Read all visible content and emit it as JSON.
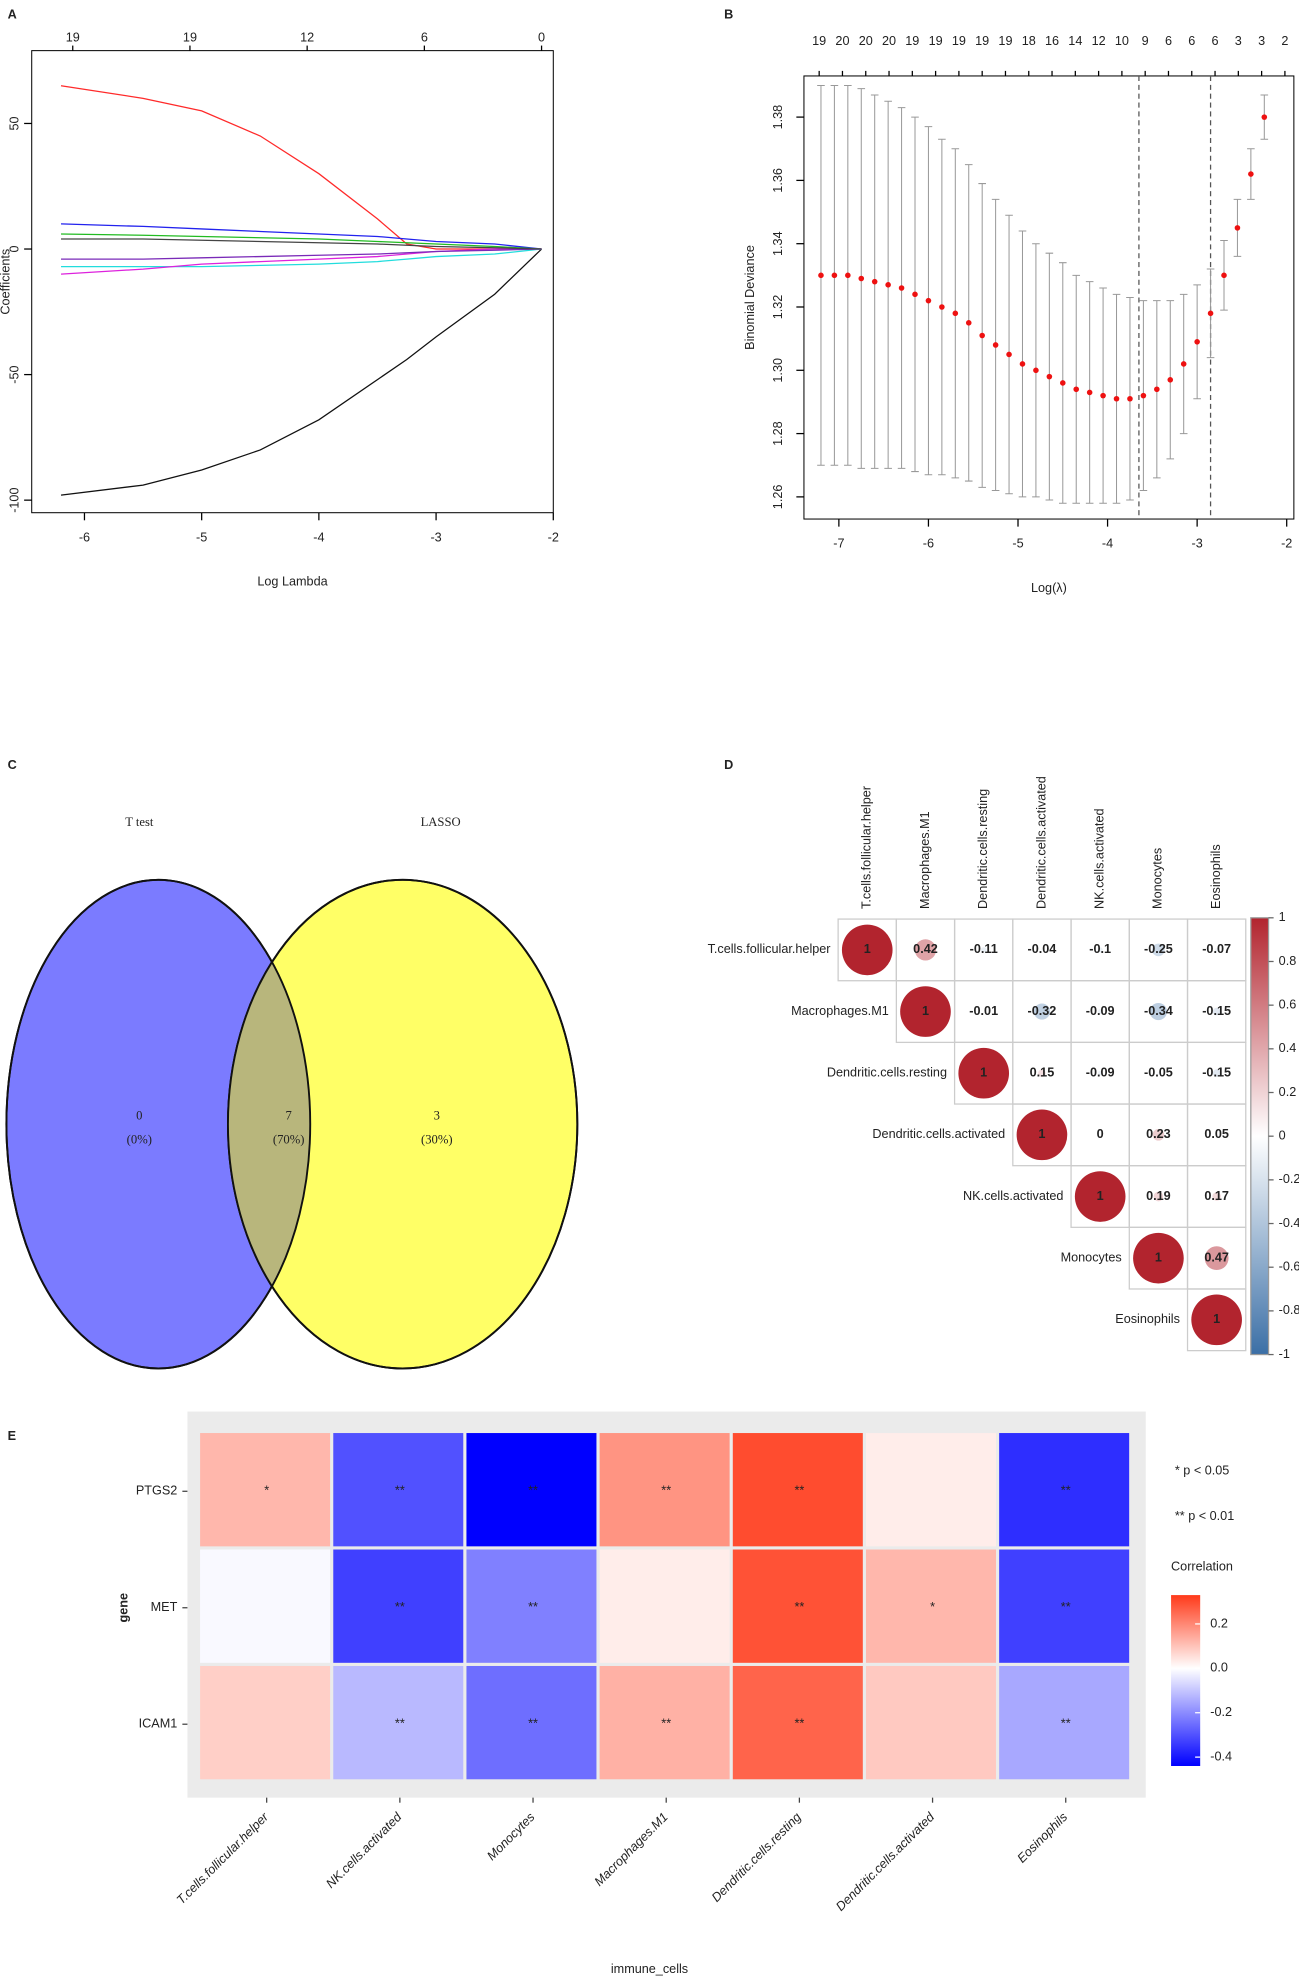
{
  "chart_data": [
    {
      "type": "line",
      "panel": "A",
      "xlabel": "Log Lambda",
      "ylabel": "Coefficients",
      "xlim": [
        -6.45,
        -2.0
      ],
      "ylim": [
        -105,
        79
      ],
      "xticks": [
        -6,
        -5,
        -4,
        -3,
        -2
      ],
      "yticks": [
        -100,
        -50,
        0,
        50
      ],
      "x2ticks": [
        {
          "value": -6.1,
          "label": "19"
        },
        {
          "value": -5.1,
          "label": "19"
        },
        {
          "value": -4.1,
          "label": "12"
        },
        {
          "value": -3.1,
          "label": "6"
        },
        {
          "value": -2.1,
          "label": "0"
        }
      ],
      "x": [
        -6.2,
        -5.5,
        -5,
        -4.5,
        -4,
        -3.5,
        -3.25,
        -3,
        -2.5,
        -2.1
      ],
      "series": [
        {
          "color": "#ff2a2a",
          "values": [
            65,
            60,
            55,
            45,
            30,
            12,
            2,
            0,
            0,
            0
          ]
        },
        {
          "color": "#111111",
          "values": [
            -98,
            -94,
            -88,
            -80,
            -68,
            -52,
            -44,
            -35,
            -18,
            0
          ]
        },
        {
          "color": "#2222ee",
          "values": [
            10,
            9,
            8,
            7,
            6,
            5,
            4,
            3,
            2,
            0
          ]
        },
        {
          "color": "#22bb22",
          "values": [
            6,
            5.5,
            5,
            4.5,
            4,
            3,
            2.5,
            2,
            1,
            0
          ]
        },
        {
          "color": "#22dddd",
          "values": [
            -7,
            -7,
            -7,
            -6.5,
            -6,
            -5,
            -4,
            -3,
            -2,
            0
          ]
        },
        {
          "color": "#dd22dd",
          "values": [
            -10,
            -8,
            -6,
            -5,
            -4,
            -3,
            -2,
            -1,
            0,
            0
          ]
        },
        {
          "color": "#7a2ab8",
          "values": [
            -4,
            -4,
            -3.5,
            -3,
            -2.5,
            -2,
            -1.5,
            -1,
            -0.5,
            0
          ]
        },
        {
          "color": "#444444",
          "values": [
            4,
            4,
            3.5,
            3,
            2.5,
            2,
            1.5,
            1,
            0.5,
            0
          ]
        }
      ]
    },
    {
      "type": "scatter",
      "panel": "B",
      "xlabel": "Log(λ)",
      "ylabel": "Binomial Deviance",
      "xlim": [
        -7.39,
        -1.92
      ],
      "ylim": [
        1.253,
        1.393
      ],
      "xticks": [
        -7,
        -6,
        -5,
        -4,
        -3,
        -2
      ],
      "yticks": [
        1.26,
        1.28,
        {
          "value": 1.3,
          "label": "1.30"
        },
        1.32,
        1.34,
        1.36,
        1.38
      ],
      "x2ticks": [
        {
          "value": -7.22,
          "label": "19"
        },
        {
          "value": -6.96,
          "label": "20"
        },
        {
          "value": -6.7,
          "label": "20"
        },
        {
          "value": -6.44,
          "label": "20"
        },
        {
          "value": -6.18,
          "label": "19"
        },
        {
          "value": -5.92,
          "label": "19"
        },
        {
          "value": -5.66,
          "label": "19"
        },
        {
          "value": -5.4,
          "label": "19"
        },
        {
          "value": -5.14,
          "label": "19"
        },
        {
          "value": -4.88,
          "label": "18"
        },
        {
          "value": -4.62,
          "label": "16"
        },
        {
          "value": -4.36,
          "label": "14"
        },
        {
          "value": -4.1,
          "label": "12"
        },
        {
          "value": -3.84,
          "label": "10"
        },
        {
          "value": -3.58,
          "label": "9"
        },
        {
          "value": -3.32,
          "label": "6"
        },
        {
          "value": -3.06,
          "label": "6"
        },
        {
          "value": -2.8,
          "label": "6"
        },
        {
          "value": -2.54,
          "label": "3"
        },
        {
          "value": -2.28,
          "label": "3"
        },
        {
          "value": -2.02,
          "label": "2"
        }
      ],
      "vlines": [
        -3.65,
        -2.85
      ],
      "color": "#ee1111",
      "error_color": "#999999",
      "x": [
        -7.2,
        -7.05,
        -6.9,
        -6.75,
        -6.6,
        -6.45,
        -6.3,
        -6.15,
        -6.0,
        -5.85,
        -5.7,
        -5.55,
        -5.4,
        -5.25,
        -5.1,
        -4.95,
        -4.8,
        -4.65,
        -4.5,
        -4.35,
        -4.2,
        -4.05,
        -3.9,
        -3.75,
        -3.6,
        -3.45,
        -3.3,
        -3.15,
        -3.0,
        -2.85,
        -2.7,
        -2.55,
        -2.4,
        -2.25
      ],
      "values": [
        1.33,
        1.33,
        1.33,
        1.329,
        1.328,
        1.327,
        1.326,
        1.324,
        1.322,
        1.32,
        1.318,
        1.315,
        1.311,
        1.308,
        1.305,
        1.302,
        1.3,
        1.298,
        1.296,
        1.294,
        1.293,
        1.292,
        1.291,
        1.291,
        1.292,
        1.294,
        1.297,
        1.302,
        1.309,
        1.318,
        1.33,
        1.345,
        1.362,
        1.38
      ],
      "errors": [
        0.06,
        0.06,
        0.06,
        0.06,
        0.059,
        0.058,
        0.057,
        0.056,
        0.055,
        0.053,
        0.052,
        0.05,
        0.048,
        0.046,
        0.044,
        0.042,
        0.04,
        0.039,
        0.038,
        0.036,
        0.035,
        0.034,
        0.033,
        0.032,
        0.03,
        0.028,
        0.025,
        0.022,
        0.018,
        0.014,
        0.011,
        0.009,
        0.008,
        0.007
      ]
    },
    {
      "type": "venn",
      "panel": "C",
      "sets": [
        {
          "name": "T test",
          "color": "#7b7bff",
          "text_color": "#4444ee"
        },
        {
          "name": "LASSO",
          "color": "#ffff66",
          "text_color": "#8a8a2a"
        }
      ],
      "overlap_color": "#b8b67c",
      "values": [
        0,
        7,
        3
      ],
      "percent_labels": [
        "(0%)",
        "(70%)",
        "(30%)"
      ]
    },
    {
      "type": "corrplot",
      "panel": "D",
      "labels": [
        "T.cells.follicular.helper",
        "Macrophages.M1",
        "Dendritic.cells.resting",
        "Dendritic.cells.activated",
        "NK.cells.activated",
        "Monocytes",
        "Eosinophils"
      ],
      "matrix": [
        [
          1,
          0.42,
          -0.11,
          -0.04,
          -0.1,
          -0.25,
          -0.07
        ],
        [
          null,
          1,
          -0.01,
          -0.32,
          -0.09,
          -0.34,
          -0.15
        ],
        [
          null,
          null,
          1,
          0.15,
          -0.09,
          -0.05,
          -0.15
        ],
        [
          null,
          null,
          null,
          1,
          0,
          0.23,
          0.05
        ],
        [
          null,
          null,
          null,
          null,
          1,
          0.19,
          0.17
        ],
        [
          null,
          null,
          null,
          null,
          null,
          1,
          0.47
        ],
        [
          null,
          null,
          null,
          null,
          null,
          null,
          1
        ]
      ],
      "limits": [
        -1,
        1
      ],
      "colors": [
        "#3b6fa6",
        "#ffffff",
        "#b2242e"
      ],
      "colorbar_ticks": [
        1,
        0.8,
        0.6,
        0.4,
        0.2,
        0,
        -0.2,
        -0.4,
        -0.6,
        -0.8,
        -1
      ]
    },
    {
      "type": "heatmap",
      "panel": "E",
      "xlabel": "immune_cells",
      "ylabel": "gene",
      "rows": [
        "PTGS2",
        "MET",
        "ICAM1"
      ],
      "columns": [
        "T.cells.follicular.helper",
        "NK.cells.activated",
        "Monocytes",
        "Macrophages.M1",
        "Dendritic.cells.resting",
        "Dendritic.cells.activated",
        "Eosinophils"
      ],
      "values": [
        [
          0.12,
          -0.3,
          -0.44,
          0.18,
          0.3,
          0.03,
          -0.36
        ],
        [
          -0.01,
          -0.33,
          -0.22,
          0.03,
          0.29,
          0.12,
          -0.33
        ],
        [
          0.08,
          -0.12,
          -0.25,
          0.13,
          0.26,
          0.09,
          -0.15
        ]
      ],
      "annotations": [
        [
          "*",
          "**",
          "**",
          "**",
          "**",
          null,
          "**"
        ],
        [
          null,
          "**",
          "**",
          null,
          "**",
          "*",
          "**"
        ],
        [
          null,
          "**",
          "**",
          "**",
          "**",
          null,
          "**"
        ]
      ],
      "limits": [
        -0.44,
        0.33
      ],
      "colors": [
        "#0000ff",
        "#ffffff",
        "#ff3a1a"
      ],
      "legend_title": "Correlation",
      "notes": [
        "* p < 0.05",
        "** p < 0.01"
      ],
      "colorbar_ticks": [
        0.2,
        {
          "value": 0,
          "label": "0.0"
        },
        -0.2,
        -0.4
      ]
    }
  ]
}
